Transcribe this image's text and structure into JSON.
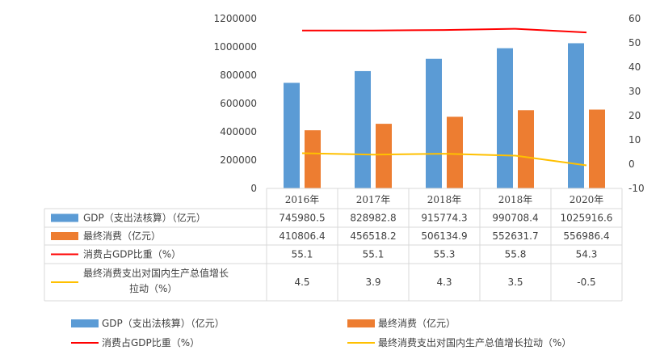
{
  "chart_data": {
    "type": "bar",
    "categories": [
      "2016年",
      "2017年",
      "2018年",
      "2018年",
      "2020年"
    ],
    "series": [
      {
        "name": "GDP（支出法核算）（亿元）",
        "kind": "bar",
        "axis": "left",
        "color": "#5B9BD5",
        "values": [
          745980.5,
          828982.8,
          915774.3,
          990708.4,
          1025916.6
        ],
        "labels": [
          "745980.5",
          "828982.8",
          "915774.3",
          "990708.4",
          "1025916.6"
        ]
      },
      {
        "name": "最终消费（亿元）",
        "kind": "bar",
        "axis": "left",
        "color": "#ED7D31",
        "values": [
          410806.4,
          456518.2,
          506134.9,
          552631.7,
          556986.4
        ],
        "labels": [
          "410806.4",
          "456518.2",
          "506134.9",
          "552631.7",
          "556986.4"
        ]
      },
      {
        "name": "消费占GDP比重（%）",
        "kind": "line",
        "axis": "right",
        "color": "#FF0000",
        "values": [
          55.1,
          55.1,
          55.3,
          55.8,
          54.3
        ],
        "labels": [
          "55.1",
          "55.1",
          "55.3",
          "55.8",
          "54.3"
        ]
      },
      {
        "name": "最终消费支出对国内生产总值增长拉动（%）",
        "kind": "line",
        "axis": "right",
        "color": "#FFC000",
        "values": [
          4.5,
          3.9,
          4.3,
          3.5,
          -0.5
        ],
        "labels": [
          "4.5",
          "3.9",
          "4.3",
          "3.5",
          "-0.5"
        ]
      }
    ],
    "table_row_labels": [
      [
        "GDP（支出法核算）（亿元）"
      ],
      [
        "最终消费（亿元）"
      ],
      [
        "消费占GDP比重（%）"
      ],
      [
        "最终消费支出对国内生产总值增长",
        "拉动（%）"
      ]
    ],
    "y_left": {
      "min": 0,
      "max": 1200000,
      "ticks": [
        0,
        200000,
        400000,
        600000,
        800000,
        1000000,
        1200000
      ]
    },
    "y_right": {
      "min": -10,
      "max": 60,
      "ticks": [
        -10,
        0,
        10,
        20,
        30,
        40,
        50,
        60
      ]
    },
    "grid": false,
    "legend": "bottom",
    "data_table": true
  }
}
